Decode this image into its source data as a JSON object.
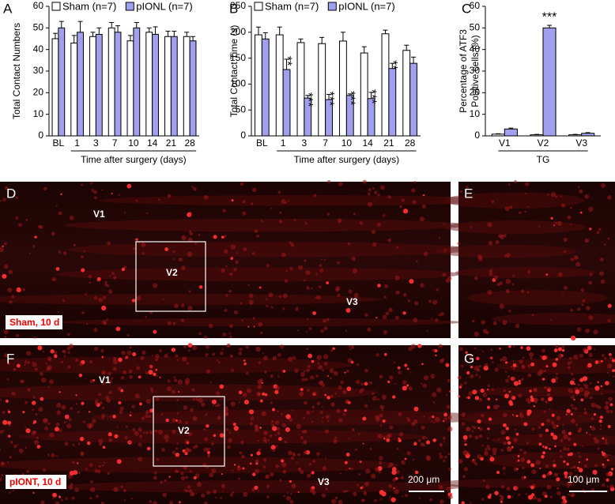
{
  "chart_data": [
    {
      "type": "bar",
      "panel": "A",
      "ylabel": "Total Contact Numbers",
      "xlabel": "Time after surgery (days)",
      "categories": [
        "BL",
        "1",
        "3",
        "7",
        "10",
        "14",
        "21",
        "28"
      ],
      "series": [
        {
          "name": "Sham (n=7)",
          "color": "#ffffff",
          "values": [
            45,
            43,
            46,
            50,
            44,
            48,
            46,
            46
          ],
          "errors": [
            2.5,
            3.5,
            2,
            2.5,
            2.5,
            2,
            2.5,
            2
          ]
        },
        {
          "name": "pIONL (n=7)",
          "color": "#a0a0ee",
          "values": [
            50,
            48,
            47,
            48,
            50,
            47,
            46,
            44
          ],
          "errors": [
            3,
            5,
            3,
            3,
            2.5,
            3.5,
            2.5,
            2
          ]
        }
      ],
      "ylim": [
        0,
        60
      ],
      "yticks": [
        0,
        10,
        20,
        30,
        40,
        50,
        60
      ]
    },
    {
      "type": "bar",
      "panel": "B",
      "ylabel": "Total Contact Time (s)",
      "xlabel": "Time after surgery (days)",
      "categories": [
        "BL",
        "1",
        "3",
        "7",
        "10",
        "14",
        "21",
        "28"
      ],
      "series": [
        {
          "name": "Sham (n=7)",
          "color": "#ffffff",
          "values": [
            195,
            195,
            180,
            178,
            183,
            160,
            197,
            165
          ],
          "errors": [
            15,
            15,
            7,
            12,
            17,
            12,
            7,
            10
          ]
        },
        {
          "name": "pIONL (n=7)",
          "color": "#a0a0ee",
          "values": [
            187,
            128,
            73,
            70,
            78,
            72,
            130,
            140
          ],
          "errors": [
            12,
            20,
            5,
            10,
            3,
            12,
            10,
            12
          ]
        }
      ],
      "annotations": [
        null,
        "**",
        "***",
        "***",
        "***",
        "***",
        "**",
        null
      ],
      "ylim": [
        0,
        250
      ],
      "yticks": [
        0,
        50,
        100,
        150,
        200,
        250
      ]
    },
    {
      "type": "bar",
      "panel": "C",
      "ylabel": [
        "Percentage of ATF3",
        "Positive cells (%)"
      ],
      "xlabel": "TG",
      "categories": [
        "V1",
        "V2",
        "V3"
      ],
      "series": [
        {
          "color": "#ffffff",
          "values": [
            0.8,
            0.5,
            0.5
          ],
          "errors": [
            0.2,
            0.2,
            0.2
          ]
        },
        {
          "color": "#a0a0ee",
          "values": [
            3.2,
            50,
            1.2
          ],
          "errors": [
            0.4,
            1.2,
            0.3
          ]
        }
      ],
      "annotations": [
        null,
        "***",
        null
      ],
      "ylim": [
        0,
        60
      ],
      "yticks": [
        0,
        10,
        20,
        30,
        40,
        50,
        60
      ]
    }
  ],
  "images": [
    {
      "panel": "D",
      "labels": [
        "V1",
        "V2",
        "V3"
      ],
      "caption": "Sham, 10 d"
    },
    {
      "panel": "E"
    },
    {
      "panel": "F",
      "labels": [
        "V1",
        "V2",
        "V3"
      ],
      "caption": "pIONT, 10 d",
      "scale_bar": "200 μm"
    },
    {
      "panel": "G",
      "scale_bar": "100 μm"
    }
  ]
}
